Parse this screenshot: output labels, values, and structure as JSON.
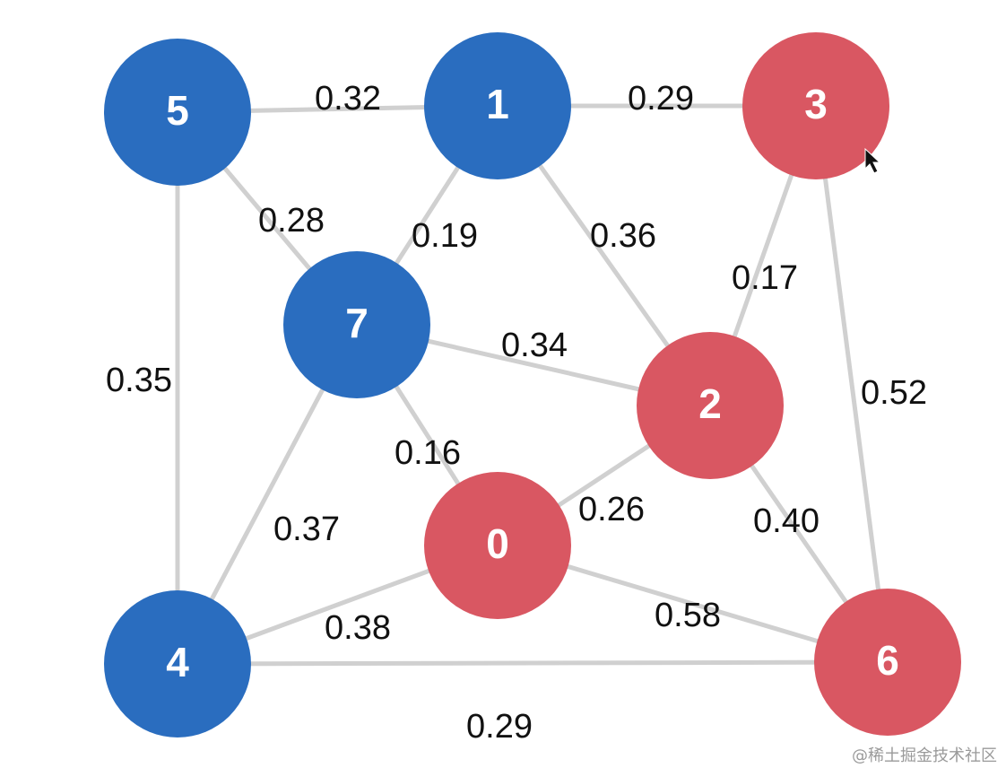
{
  "colors": {
    "blue": "#2a6dbf",
    "red": "#d95762",
    "edge": "#d0d0d0"
  },
  "nodes": [
    {
      "id": "0",
      "label": "0",
      "group": "red"
    },
    {
      "id": "1",
      "label": "1",
      "group": "blue"
    },
    {
      "id": "2",
      "label": "2",
      "group": "red"
    },
    {
      "id": "3",
      "label": "3",
      "group": "red"
    },
    {
      "id": "4",
      "label": "4",
      "group": "blue"
    },
    {
      "id": "5",
      "label": "5",
      "group": "blue"
    },
    {
      "id": "6",
      "label": "6",
      "group": "red"
    },
    {
      "id": "7",
      "label": "7",
      "group": "blue"
    }
  ],
  "edges": [
    {
      "from": "5",
      "to": "1",
      "weight": "0.32"
    },
    {
      "from": "1",
      "to": "3",
      "weight": "0.29"
    },
    {
      "from": "5",
      "to": "7",
      "weight": "0.28"
    },
    {
      "from": "1",
      "to": "7",
      "weight": "0.19"
    },
    {
      "from": "1",
      "to": "2",
      "weight": "0.36"
    },
    {
      "from": "3",
      "to": "2",
      "weight": "0.17"
    },
    {
      "from": "5",
      "to": "4",
      "weight": "0.35"
    },
    {
      "from": "7",
      "to": "2",
      "weight": "0.34"
    },
    {
      "from": "3",
      "to": "6",
      "weight": "0.52"
    },
    {
      "from": "7",
      "to": "0",
      "weight": "0.16"
    },
    {
      "from": "0",
      "to": "2",
      "weight": "0.26"
    },
    {
      "from": "7",
      "to": "4",
      "weight": "0.37"
    },
    {
      "from": "2",
      "to": "6",
      "weight": "0.40"
    },
    {
      "from": "4",
      "to": "0",
      "weight": "0.38"
    },
    {
      "from": "0",
      "to": "6",
      "weight": "0.58"
    },
    {
      "from": "4",
      "to": "6",
      "weight": "0.29"
    }
  ],
  "watermark": "@稀土掘金技术社区"
}
